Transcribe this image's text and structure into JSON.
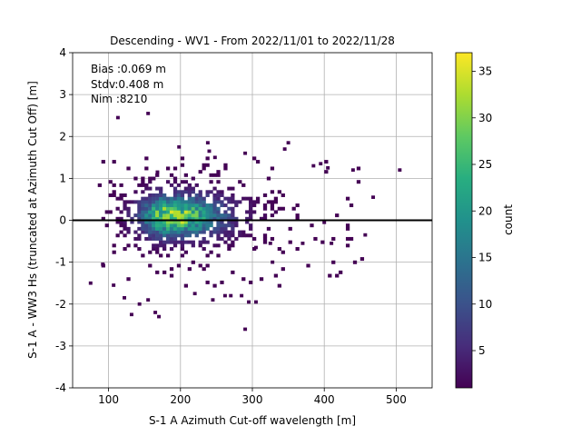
{
  "chart_data": {
    "type": "heatmap",
    "title": "Descending - WV1 - From 2022/11/01 to 2022/11/28",
    "xlabel": "S-1 A Azimuth Cut-off wavelength [m]",
    "ylabel": "S-1 A - WW3 Hs (truncated at Azimuth Cut Off) [m]",
    "xlim": [
      50,
      550
    ],
    "ylim": [
      -4,
      4
    ],
    "xticks": [
      100,
      200,
      300,
      400,
      500
    ],
    "yticks": [
      -4,
      -3,
      -2,
      -1,
      0,
      1,
      2,
      3,
      4
    ],
    "grid": true,
    "zero_line_y": 0,
    "annotations": [
      "Bias :0.069 m",
      "Stdv:0.408 m",
      "Nim :8210"
    ],
    "colorbar": {
      "label": "count",
      "colormap": "viridis",
      "range": [
        1,
        37
      ],
      "ticks": [
        5,
        10,
        15,
        20,
        25,
        30,
        35
      ]
    },
    "bin_size": {
      "x": 5,
      "y": 0.08
    },
    "cluster": {
      "center": {
        "x": 185,
        "y": 0.1
      },
      "peak_count": 37,
      "x_extent": [
        85,
        455
      ],
      "y_extent": [
        -1.6,
        1.5
      ]
    },
    "outliers": [
      {
        "x": 113,
        "y": 2.45
      },
      {
        "x": 155,
        "y": 2.55
      },
      {
        "x": 168,
        "y": 1.15
      },
      {
        "x": 198,
        "y": 1.75
      },
      {
        "x": 238,
        "y": 1.85
      },
      {
        "x": 240,
        "y": 1.65
      },
      {
        "x": 248,
        "y": 1.5
      },
      {
        "x": 290,
        "y": 1.6
      },
      {
        "x": 350,
        "y": 1.85
      },
      {
        "x": 345,
        "y": 1.7
      },
      {
        "x": 385,
        "y": 1.3
      },
      {
        "x": 395,
        "y": 1.35
      },
      {
        "x": 405,
        "y": 1.25
      },
      {
        "x": 440,
        "y": 1.2
      },
      {
        "x": 505,
        "y": 1.2
      },
      {
        "x": 468,
        "y": 0.55
      },
      {
        "x": 457,
        "y": -0.35
      },
      {
        "x": 400,
        "y": -0.05
      },
      {
        "x": 410,
        "y": -0.55
      },
      {
        "x": 370,
        "y": -0.55
      },
      {
        "x": 325,
        "y": -0.55
      },
      {
        "x": 305,
        "y": -0.65
      },
      {
        "x": 75,
        "y": -1.5
      },
      {
        "x": 92,
        "y": -1.05
      },
      {
        "x": 107,
        "y": -1.55
      },
      {
        "x": 122,
        "y": -1.85
      },
      {
        "x": 132,
        "y": -2.25
      },
      {
        "x": 143,
        "y": -2.0
      },
      {
        "x": 155,
        "y": -1.9
      },
      {
        "x": 165,
        "y": -2.2
      },
      {
        "x": 170,
        "y": -2.3
      },
      {
        "x": 220,
        "y": -1.75
      },
      {
        "x": 245,
        "y": -1.9
      },
      {
        "x": 262,
        "y": -1.8
      },
      {
        "x": 270,
        "y": -1.8
      },
      {
        "x": 285,
        "y": -1.8
      },
      {
        "x": 295,
        "y": -1.95
      },
      {
        "x": 305,
        "y": -1.95
      },
      {
        "x": 290,
        "y": -2.6
      },
      {
        "x": 328,
        "y": -1.0
      }
    ]
  }
}
